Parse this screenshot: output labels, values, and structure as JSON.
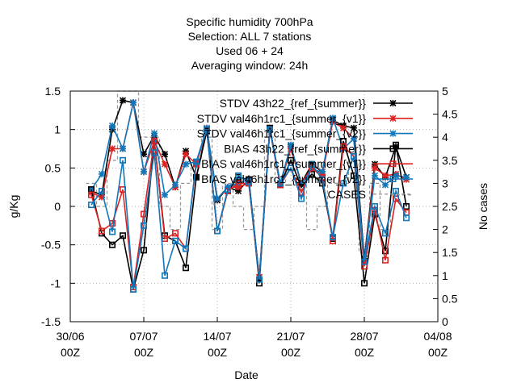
{
  "chart_data": {
    "type": "line",
    "title_lines": [
      "Specific humidity 700hPa",
      "Selection: ALL       7 stations",
      "Used  06  + 24",
      "Averaging window: 24h"
    ],
    "xlabel": "Date",
    "ylabel": "g/Kg",
    "y2label": "No cases",
    "x_range": [
      "2014-06-30 00:00",
      "2014-08-04 00:00"
    ],
    "ylim": [
      -1.5,
      1.5
    ],
    "y2lim": [
      0,
      5
    ],
    "x_ticks": [
      {
        "date": "2014-06-30",
        "line1": "30/06",
        "line2": "00Z"
      },
      {
        "date": "2014-07-07",
        "line1": "07/07",
        "line2": "00Z"
      },
      {
        "date": "2014-07-14",
        "line1": "14/07",
        "line2": "00Z"
      },
      {
        "date": "2014-07-21",
        "line1": "21/07",
        "line2": "00Z"
      },
      {
        "date": "2014-07-28",
        "line1": "28/07",
        "line2": "00Z"
      },
      {
        "date": "2014-08-04",
        "line1": "04/08",
        "line2": "00Z"
      }
    ],
    "y_ticks": [
      "-1.5",
      "-1",
      "-0.5",
      "0",
      "0.5",
      "1",
      "1.5"
    ],
    "y2_ticks": [
      "0",
      "0.5",
      "1",
      "1.5",
      "2",
      "2.5",
      "3",
      "3.5",
      "4",
      "4.5",
      "5"
    ],
    "grid": true,
    "legend_position": "top-right",
    "x": [
      "2014-07-02 00:00",
      "2014-07-03 00:00",
      "2014-07-04 00:00",
      "2014-07-05 00:00",
      "2014-07-06 00:00",
      "2014-07-07 00:00",
      "2014-07-08 00:00",
      "2014-07-09 00:00",
      "2014-07-10 00:00",
      "2014-07-11 00:00",
      "2014-07-12 00:00",
      "2014-07-13 00:00",
      "2014-07-14 00:00",
      "2014-07-15 00:00",
      "2014-07-16 00:00",
      "2014-07-17 00:00",
      "2014-07-18 00:00",
      "2014-07-19 00:00",
      "2014-07-20 00:00",
      "2014-07-21 00:00",
      "2014-07-22 00:00",
      "2014-07-23 00:00",
      "2014-07-24 00:00",
      "2014-07-25 00:00",
      "2014-07-26 00:00",
      "2014-07-27 00:00",
      "2014-07-28 00:00",
      "2014-07-29 00:00",
      "2014-07-30 00:00",
      "2014-07-31 00:00",
      "2014-08-01 00:00"
    ],
    "series": [
      {
        "name": "STDV 43h22_{ref_{summer}}",
        "color": "#000000",
        "marker": "star",
        "axis": "y",
        "values": [
          0.2,
          0.15,
          1.0,
          1.38,
          1.35,
          0.68,
          0.92,
          0.68,
          0.25,
          0.72,
          0.38,
          1.0,
          0.08,
          0.25,
          0.2,
          0.35,
          -0.92,
          1.0,
          0.28,
          0.78,
          0.3,
          0.55,
          0.45,
          1.12,
          1.05,
          1.02,
          -0.68,
          0.55,
          0.38,
          0.78,
          0.38
        ]
      },
      {
        "name": "STDV val46h1rc1_{summer_{v1}}",
        "color": "#dd2222",
        "marker": "star",
        "axis": "y",
        "values": [
          0.18,
          0.12,
          0.75,
          0.75,
          1.35,
          0.45,
          0.85,
          0.55,
          0.25,
          0.68,
          0.55,
          1.02,
          0.1,
          0.25,
          0.25,
          0.3,
          -0.92,
          1.02,
          0.3,
          0.75,
          0.3,
          0.5,
          0.42,
          1.1,
          1.02,
          0.88,
          -0.72,
          0.5,
          0.4,
          0.42,
          0.35
        ]
      },
      {
        "name": "STDV val46h1rc1_{summer_{v2}}",
        "color": "#1177bb",
        "marker": "star",
        "axis": "y",
        "values": [
          0.22,
          0.42,
          1.05,
          0.75,
          1.35,
          0.45,
          0.95,
          0.15,
          0.28,
          0.55,
          0.58,
          1.02,
          0.1,
          0.25,
          0.3,
          0.35,
          -0.95,
          1.02,
          0.3,
          0.8,
          0.28,
          0.48,
          0.45,
          1.15,
          0.75,
          0.88,
          -0.72,
          0.4,
          0.28,
          0.4,
          0.38
        ]
      },
      {
        "name": "BIAS 43h22_{ref_{summer}}",
        "color": "#000000",
        "marker": "square",
        "axis": "y",
        "values": [
          0.22,
          -0.35,
          -0.5,
          -0.38,
          -1.08,
          -0.57,
          0.85,
          -0.38,
          -0.45,
          -0.8,
          0.38,
          0.98,
          -0.32,
          0.2,
          0.38,
          0.35,
          -1.0,
          1.02,
          0.28,
          0.6,
          0.25,
          0.42,
          0.3,
          -0.42,
          0.85,
          0.4,
          -1.0,
          -0.1,
          -0.58,
          0.8,
          0.0
        ]
      },
      {
        "name": "BIAS val46h1rc1_{summer_{v1}}",
        "color": "#dd2222",
        "marker": "square",
        "axis": "y",
        "values": [
          0.15,
          -0.32,
          -0.22,
          0.22,
          -1.05,
          -0.1,
          0.85,
          -0.42,
          -0.35,
          -0.55,
          0.55,
          1.0,
          -0.32,
          0.2,
          0.3,
          0.3,
          -0.95,
          1.0,
          0.28,
          0.5,
          0.18,
          0.5,
          0.38,
          -0.45,
          0.78,
          0.65,
          -0.78,
          -0.05,
          -0.7,
          0.1,
          -0.08
        ]
      },
      {
        "name": "BIAS val46h1rc1_{summer_{v2}}",
        "color": "#1177bb",
        "marker": "square",
        "axis": "y",
        "values": [
          0.02,
          0.2,
          -0.33,
          0.6,
          -1.08,
          -0.25,
          0.7,
          -0.9,
          -0.45,
          -0.55,
          0.58,
          1.0,
          -0.32,
          0.22,
          0.4,
          0.32,
          -0.95,
          1.0,
          0.3,
          0.5,
          0.1,
          0.55,
          0.35,
          -0.4,
          0.3,
          0.65,
          -0.72,
          0.0,
          -0.35,
          0.2,
          -0.15
        ]
      },
      {
        "name": "CASES",
        "color": "#999999",
        "marker": "none",
        "axis": "y2",
        "dashed": true,
        "step": true,
        "values": [
          3,
          2.5,
          3.5,
          5,
          5,
          4,
          4,
          2.5,
          2,
          3,
          3.5,
          4,
          2,
          3,
          2.5,
          2,
          2.5,
          4,
          3,
          3.5,
          3,
          2,
          2.5,
          3,
          3,
          3.5,
          1.5,
          3,
          2,
          2.75,
          2.75
        ]
      }
    ]
  }
}
